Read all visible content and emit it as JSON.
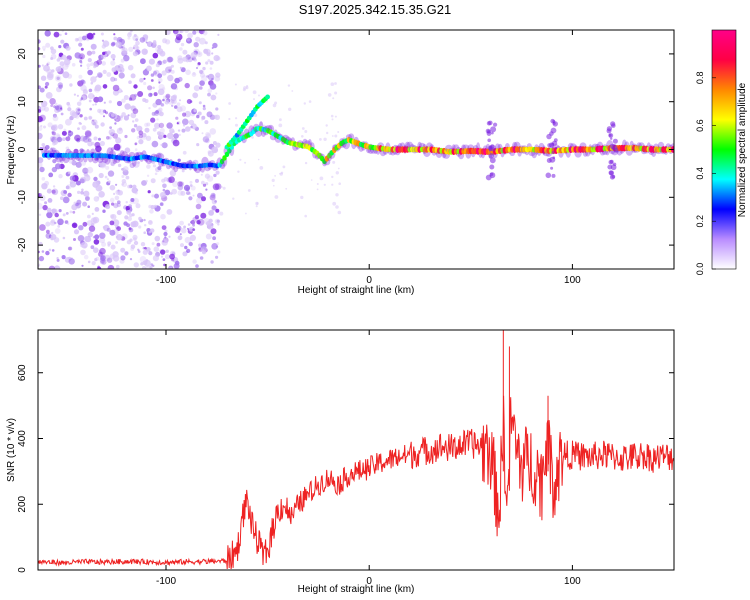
{
  "title": "S197.2025.342.15.35.G21",
  "colors": {
    "axis": "#000000",
    "snr_line": "#ee2222",
    "scatter_low": "#d8c4f8",
    "scatter_mid": "#a070ee",
    "scatter_high": "#7a20e0"
  },
  "chart_data": [
    {
      "id": "spectrogram",
      "type": "heatmap",
      "xlabel": "Height of straight line (km)",
      "ylabel": "Frequency (Hz)",
      "xlim": [
        -163,
        150
      ],
      "ylim": [
        -25,
        25
      ],
      "xticks": [
        -100,
        0,
        100
      ],
      "yticks": [
        -20,
        -10,
        0,
        10,
        20
      ],
      "ridge": {
        "x": [
          -163,
          -130,
          -118,
          -110,
          -100,
          -92,
          -85,
          -78,
          -74,
          -70,
          -66,
          -62,
          -58,
          -55,
          -50,
          -45,
          -40,
          -35,
          -30,
          -25,
          -22,
          -20,
          -17,
          -13,
          -10,
          -5,
          0,
          10,
          20,
          30,
          40,
          50,
          60,
          70,
          80,
          90,
          100,
          110,
          120,
          130,
          140,
          150
        ],
        "y": [
          -1.2,
          -1.3,
          -2.0,
          -1.5,
          -2.6,
          -3.4,
          -3.5,
          -3.2,
          -3.5,
          -1.0,
          1.5,
          2.5,
          3.3,
          4.5,
          4.0,
          2.8,
          1.5,
          1.0,
          0.6,
          -1.0,
          -2.5,
          -1.5,
          0.0,
          1.5,
          2.0,
          1.2,
          0.5,
          0.0,
          0.0,
          0.0,
          -0.5,
          -0.3,
          -0.5,
          0.0,
          0.0,
          -0.3,
          0.0,
          0.0,
          0.3,
          0.3,
          0.0,
          0.0
        ]
      },
      "branch": {
        "x": [
          -70,
          -65,
          -60,
          -55,
          -50
        ],
        "y": [
          0.5,
          3.0,
          6.0,
          9.0,
          11.0
        ]
      },
      "colorbar": {
        "label": "Normalized spectral amplitude",
        "range": [
          0,
          1
        ],
        "ticks": [
          0.0,
          0.2,
          0.4,
          0.6,
          0.8
        ],
        "tick_labels": [
          "0.0",
          "0.2",
          "0.4",
          "0.6",
          "0.8"
        ],
        "colors": [
          "#ffffff",
          "#b98cff",
          "#0000ff",
          "#00ffff",
          "#00ff00",
          "#ffff00",
          "#ff8800",
          "#ff0044",
          "#ff0088"
        ]
      }
    },
    {
      "id": "snr",
      "type": "line",
      "xlabel": "Height of straight line (km)",
      "ylabel": "SNR (10 * v/v)",
      "xlim": [
        -163,
        150
      ],
      "ylim": [
        0,
        730
      ],
      "xticks": [
        -100,
        0,
        100
      ],
      "yticks": [
        0,
        200,
        400,
        600
      ],
      "series": [
        {
          "name": "SNR",
          "x": [
            -163,
            -150,
            -140,
            -130,
            -120,
            -110,
            -100,
            -90,
            -80,
            -70,
            -65,
            -62,
            -60,
            -58,
            -55,
            -52,
            -50,
            -48,
            -45,
            -42,
            -38,
            -35,
            -30,
            -25,
            -20,
            -15,
            -10,
            -5,
            0,
            5,
            10,
            15,
            20,
            25,
            30,
            35,
            40,
            45,
            50,
            55,
            60,
            62,
            64,
            66,
            68,
            70,
            72,
            75,
            80,
            85,
            88,
            90,
            92,
            95,
            100,
            105,
            110,
            115,
            120,
            125,
            130,
            135,
            140,
            145,
            150
          ],
          "values": [
            25,
            22,
            25,
            24,
            26,
            25,
            23,
            25,
            26,
            28,
            60,
            170,
            220,
            140,
            90,
            40,
            60,
            110,
            180,
            200,
            160,
            200,
            230,
            260,
            280,
            260,
            290,
            300,
            310,
            325,
            335,
            345,
            350,
            360,
            365,
            375,
            370,
            380,
            385,
            375,
            360,
            250,
            180,
            450,
            180,
            480,
            370,
            320,
            330,
            270,
            420,
            260,
            290,
            350,
            350,
            345,
            345,
            350,
            345,
            340,
            345,
            350,
            340,
            345,
            345
          ]
        }
      ]
    }
  ]
}
